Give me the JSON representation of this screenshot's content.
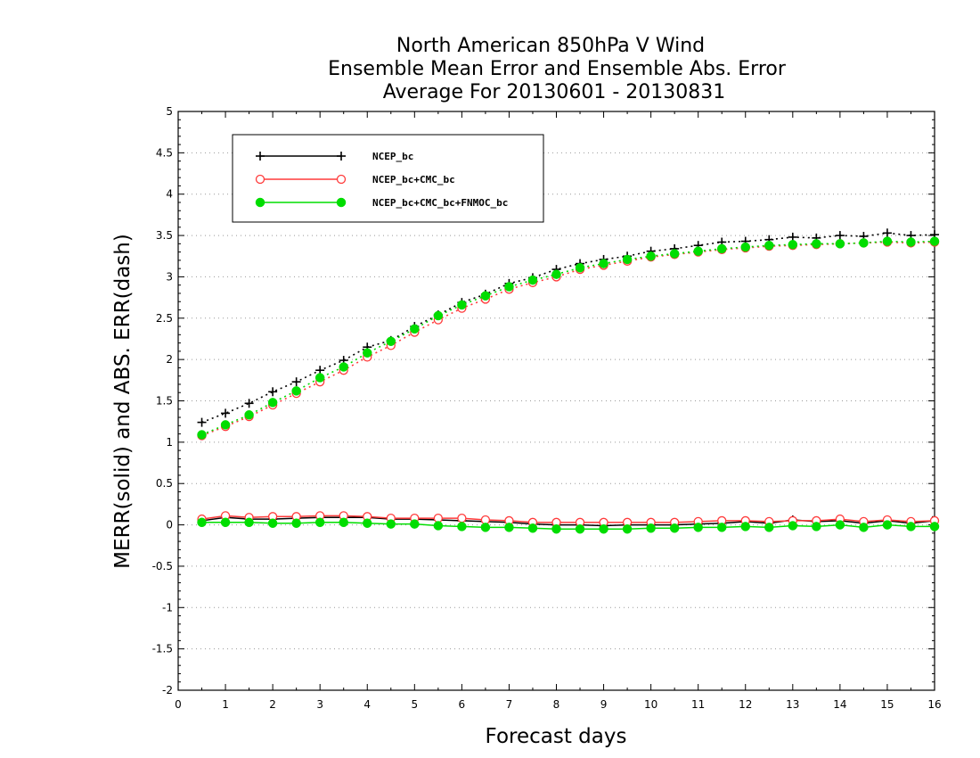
{
  "chart_data": {
    "type": "line",
    "title": [
      "North American 850hPa V Wind",
      "Ensemble Mean Error and Ensemble Abs. Error",
      "Average For 20130601 - 20130831"
    ],
    "xlabel": "Forecast days",
    "ylabel": "MERR(solid) and ABS. ERR(dash)",
    "xlim": [
      0,
      16
    ],
    "ylim": [
      -2,
      5
    ],
    "x_ticks": [
      "0",
      "1",
      "2",
      "3",
      "4",
      "5",
      "6",
      "7",
      "8",
      "9",
      "10",
      "11",
      "12",
      "13",
      "14",
      "15",
      "16"
    ],
    "y_ticks": [
      "5",
      "4.5",
      "4",
      "3.5",
      "3",
      "2.5",
      "2",
      "1.5",
      "1",
      "0.5",
      "0",
      "-0.5",
      "-1",
      "-1.5",
      "-2"
    ],
    "y_tick_values": [
      5,
      4.5,
      4,
      3.5,
      3,
      2.5,
      2,
      1.5,
      1,
      0.5,
      0,
      -0.5,
      -1,
      -1.5,
      -2
    ],
    "grid": true,
    "legend_position": "top-left",
    "x": [
      0.5,
      1,
      1.5,
      2,
      2.5,
      3,
      3.5,
      4,
      4.5,
      5,
      5.5,
      6,
      6.5,
      7,
      7.5,
      8,
      8.5,
      9,
      9.5,
      10,
      10.5,
      11,
      11.5,
      12,
      12.5,
      13,
      13.5,
      14,
      14.5,
      15,
      15.5,
      16
    ],
    "series": [
      {
        "name": "NCEP_bc",
        "color": "#000000",
        "marker": "plus",
        "abs_err": [
          1.24,
          1.35,
          1.47,
          1.61,
          1.73,
          1.87,
          1.99,
          2.15,
          2.23,
          2.4,
          2.54,
          2.69,
          2.79,
          2.92,
          2.99,
          3.09,
          3.16,
          3.21,
          3.25,
          3.31,
          3.34,
          3.38,
          3.42,
          3.43,
          3.45,
          3.48,
          3.47,
          3.5,
          3.49,
          3.53,
          3.5,
          3.51
        ],
        "mean_err": [
          0.05,
          0.09,
          0.07,
          0.07,
          0.08,
          0.09,
          0.09,
          0.09,
          0.07,
          0.07,
          0.06,
          0.05,
          0.04,
          0.03,
          0.01,
          0.0,
          0.0,
          -0.01,
          0.0,
          0.0,
          0.0,
          0.01,
          0.02,
          0.04,
          0.02,
          0.06,
          0.04,
          0.05,
          0.02,
          0.05,
          0.02,
          0.05
        ]
      },
      {
        "name": "NCEP_bc+CMC_bc",
        "color": "#ff3a3a",
        "marker": "open-circle",
        "abs_err": [
          1.08,
          1.19,
          1.31,
          1.45,
          1.59,
          1.73,
          1.87,
          2.03,
          2.17,
          2.33,
          2.48,
          2.62,
          2.73,
          2.85,
          2.93,
          3.0,
          3.09,
          3.14,
          3.19,
          3.24,
          3.27,
          3.3,
          3.33,
          3.35,
          3.37,
          3.38,
          3.39,
          3.4,
          3.41,
          3.42,
          3.41,
          3.42
        ],
        "mean_err": [
          0.07,
          0.11,
          0.09,
          0.1,
          0.1,
          0.11,
          0.11,
          0.1,
          0.08,
          0.08,
          0.08,
          0.08,
          0.06,
          0.05,
          0.03,
          0.03,
          0.03,
          0.03,
          0.03,
          0.03,
          0.03,
          0.04,
          0.05,
          0.05,
          0.04,
          0.05,
          0.05,
          0.07,
          0.04,
          0.06,
          0.04,
          0.05
        ]
      },
      {
        "name": "NCEP_bc+CMC_bc+FNMOC_bc",
        "color": "#00dd00",
        "marker": "filled-circle",
        "abs_err": [
          1.09,
          1.21,
          1.33,
          1.48,
          1.62,
          1.78,
          1.91,
          2.08,
          2.22,
          2.37,
          2.53,
          2.66,
          2.77,
          2.88,
          2.96,
          3.03,
          3.11,
          3.16,
          3.21,
          3.25,
          3.28,
          3.31,
          3.34,
          3.36,
          3.38,
          3.39,
          3.4,
          3.4,
          3.41,
          3.43,
          3.42,
          3.43
        ],
        "mean_err": [
          0.03,
          0.03,
          0.03,
          0.02,
          0.02,
          0.03,
          0.03,
          0.02,
          0.01,
          0.01,
          -0.01,
          -0.02,
          -0.03,
          -0.03,
          -0.04,
          -0.05,
          -0.05,
          -0.05,
          -0.05,
          -0.04,
          -0.04,
          -0.03,
          -0.03,
          -0.02,
          -0.03,
          -0.01,
          -0.02,
          0.0,
          -0.03,
          0.0,
          -0.02,
          -0.02
        ]
      }
    ]
  }
}
